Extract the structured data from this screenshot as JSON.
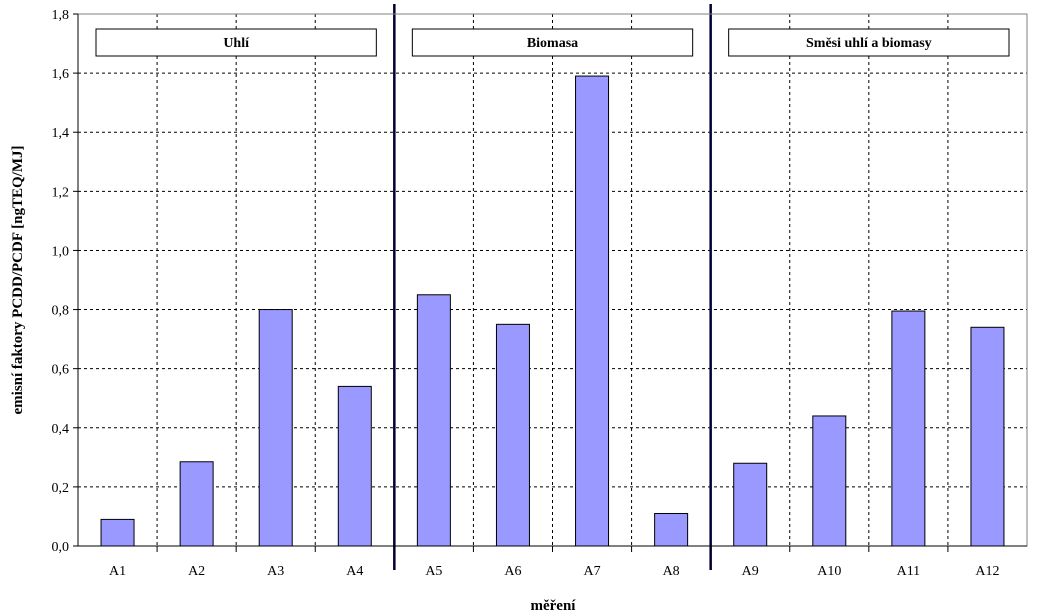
{
  "chart_data": {
    "type": "bar",
    "categories": [
      "A1",
      "A2",
      "A3",
      "A4",
      "A5",
      "A6",
      "A7",
      "A8",
      "A9",
      "A10",
      "A11",
      "A12"
    ],
    "values": [
      0.09,
      0.285,
      0.8,
      0.54,
      0.85,
      0.75,
      1.59,
      0.11,
      0.28,
      0.44,
      0.795,
      0.74
    ],
    "ylabel": "emisní faktory PCDD/PCDF [ngTEQ/MJ]",
    "xlabel": "měření",
    "ylim": [
      0,
      1.8
    ],
    "yticks": [
      "0,0",
      "0,2",
      "0,4",
      "0,6",
      "0,8",
      "1,0",
      "1,2",
      "1,4",
      "1,6",
      "1,8"
    ],
    "grid": true,
    "bar_color": "#9999ff",
    "groups": [
      {
        "label": "Uhlí",
        "start": 0,
        "end": 3
      },
      {
        "label": "Biomasa",
        "start": 4,
        "end": 7
      },
      {
        "label": "Směsi uhlí a biomasy",
        "start": 8,
        "end": 11
      }
    ]
  }
}
